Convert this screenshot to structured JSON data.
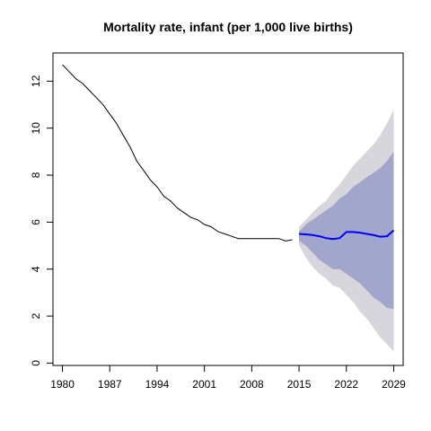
{
  "chart_data": {
    "type": "line",
    "title": "Mortality rate, infant (per 1,000 live births)",
    "xlabel": "",
    "ylabel": "",
    "xlim": [
      1978.6,
      2030.4
    ],
    "ylim": [
      -0.1,
      13.2
    ],
    "x_ticks": [
      1980,
      1987,
      1994,
      2001,
      2008,
      2015,
      2022,
      2029
    ],
    "x_tick_labels": [
      "1980",
      "1987",
      "1994",
      "2001",
      "2008",
      "2015",
      "2022",
      "2029"
    ],
    "y_ticks": [
      0,
      2,
      4,
      6,
      8,
      10,
      12
    ],
    "y_tick_labels": [
      "0",
      "2",
      "4",
      "6",
      "8",
      "10",
      "12"
    ],
    "grid": false,
    "colors": {
      "history": "#000000",
      "forecast": "#0000ff",
      "band80": "#a3a6cc",
      "band95": "#d6d6dc"
    },
    "series": [
      {
        "role": "history",
        "x": [
          1980,
          1981,
          1982,
          1983,
          1984,
          1985,
          1986,
          1987,
          1988,
          1989,
          1990,
          1991,
          1992,
          1993,
          1994,
          1995,
          1996,
          1997,
          1998,
          1999,
          2000,
          2001,
          2002,
          2003,
          2004,
          2005,
          2006,
          2007,
          2008,
          2009,
          2010,
          2011,
          2012,
          2013,
          2014
        ],
        "y": [
          12.7,
          12.4,
          12.1,
          11.9,
          11.6,
          11.3,
          11.0,
          10.6,
          10.2,
          9.7,
          9.2,
          8.6,
          8.2,
          7.8,
          7.5,
          7.1,
          6.9,
          6.6,
          6.4,
          6.2,
          6.1,
          5.9,
          5.8,
          5.6,
          5.5,
          5.4,
          5.3,
          5.3,
          5.3,
          5.3,
          5.3,
          5.3,
          5.3,
          5.2,
          5.25
        ]
      },
      {
        "role": "forecast",
        "x": [
          2015,
          2016,
          2017,
          2018,
          2019,
          2020,
          2021,
          2022,
          2023,
          2024,
          2025,
          2026,
          2027,
          2028,
          2029
        ],
        "y": [
          5.5,
          5.48,
          5.45,
          5.4,
          5.32,
          5.28,
          5.32,
          5.58,
          5.58,
          5.55,
          5.5,
          5.45,
          5.38,
          5.4,
          5.65
        ],
        "lo80": [
          5.2,
          5.0,
          4.7,
          4.4,
          4.2,
          4.0,
          4.0,
          3.8,
          3.6,
          3.4,
          3.1,
          2.8,
          2.6,
          2.35,
          2.3
        ],
        "hi80": [
          5.6,
          5.9,
          6.1,
          6.3,
          6.5,
          6.7,
          7.0,
          7.2,
          7.5,
          7.7,
          7.9,
          8.1,
          8.3,
          8.6,
          9.0
        ],
        "lo95": [
          5.0,
          4.5,
          4.1,
          3.8,
          3.6,
          3.3,
          3.2,
          2.9,
          2.6,
          2.2,
          1.9,
          1.5,
          1.1,
          0.8,
          0.5
        ],
        "hi95": [
          5.8,
          6.1,
          6.4,
          6.7,
          6.9,
          7.3,
          7.6,
          8.0,
          8.4,
          8.7,
          9.0,
          9.3,
          9.7,
          10.2,
          10.8
        ]
      }
    ]
  }
}
